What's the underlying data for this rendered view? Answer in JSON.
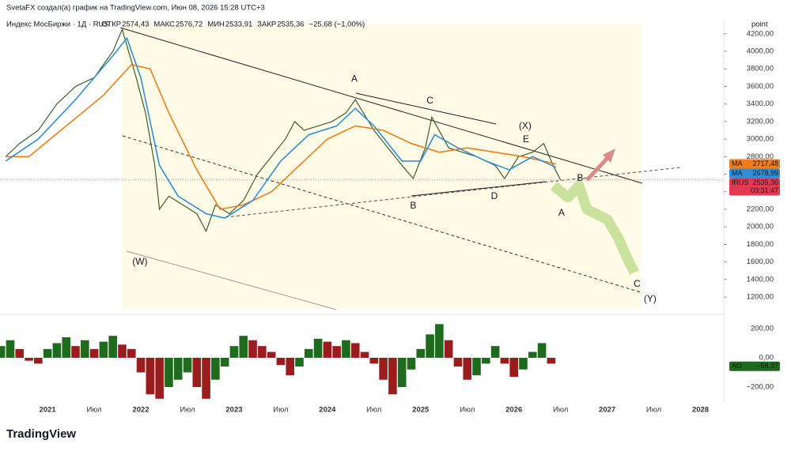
{
  "header": {
    "credit": "SvetaFX создал(а) график на TradingView.com, Июн 08, 2026 15:28 UTC+3",
    "symbol": "Индекс МосБиржи · 1Д · RUS",
    "stats": [
      {
        "label": "ОТКР",
        "value": "2574,43"
      },
      {
        "label": "МАКС",
        "value": "2576,72"
      },
      {
        "label": "МИН",
        "value": "2533,91"
      },
      {
        "label": "ЗАКР",
        "value": "2535,36"
      }
    ],
    "change": "−25,68 (−1,00%)",
    "unit": "point"
  },
  "brand": "TradingView",
  "chart_data": [
    {
      "type": "line",
      "xlim": [
        2020.49,
        2028.25
      ],
      "ylim": [
        1030,
        4360
      ],
      "yticks": [
        {
          "value": 1200,
          "label": "1200,00"
        },
        {
          "value": 1400,
          "label": "1400,00"
        },
        {
          "value": 1600,
          "label": "1600,00"
        },
        {
          "value": 1800,
          "label": "1800,00"
        },
        {
          "value": 2000,
          "label": "2000,00"
        },
        {
          "value": 2200,
          "label": "2200,00"
        },
        {
          "value": 2400,
          "label": "2400,00"
        },
        {
          "value": 2600,
          "label": "2600,00"
        },
        {
          "value": 2800,
          "label": "2800,00"
        },
        {
          "value": 3000,
          "label": "3000,00"
        },
        {
          "value": 3200,
          "label": "3200,00"
        },
        {
          "value": 3400,
          "label": "3400,00"
        },
        {
          "value": 3600,
          "label": "3600,00"
        },
        {
          "value": 3800,
          "label": "3800,00"
        },
        {
          "value": 4000,
          "label": "4000,00"
        },
        {
          "value": 4200,
          "label": "4200,00"
        }
      ],
      "series": [
        {
          "name": "IRUS",
          "color": "#3d5f2e",
          "x": [
            2020.55,
            2020.7,
            2020.9,
            2021.1,
            2021.3,
            2021.5,
            2021.7,
            2021.8,
            2021.95,
            2022.05,
            2022.15,
            2022.2,
            2022.3,
            2022.45,
            2022.6,
            2022.7,
            2022.8,
            2022.95,
            2023.1,
            2023.25,
            2023.4,
            2023.55,
            2023.65,
            2023.75,
            2023.9,
            2024.05,
            2024.2,
            2024.3,
            2024.5,
            2024.65,
            2024.8,
            2024.92,
            2025.05,
            2025.12,
            2025.3,
            2025.45,
            2025.6,
            2025.8,
            2025.9,
            2026.05,
            2026.2,
            2026.32,
            2026.42,
            2026.5
          ],
          "values": [
            2800,
            2950,
            3100,
            3400,
            3600,
            3700,
            4000,
            4250,
            3700,
            3300,
            2700,
            2200,
            2350,
            2250,
            2150,
            1950,
            2250,
            2150,
            2300,
            2600,
            2800,
            3000,
            3200,
            3100,
            3150,
            3200,
            3300,
            3450,
            3100,
            2900,
            2700,
            2550,
            2900,
            3250,
            2900,
            2850,
            2800,
            2700,
            2550,
            2800,
            2850,
            2950,
            2700,
            2535
          ],
          "last_value": 2535.36,
          "last_value_label": "2535,36",
          "countdown": "03:31:47",
          "tag_color": "#e53950"
        },
        {
          "name": "MA",
          "color": "#f07d1a",
          "x": [
            2020.55,
            2020.8,
            2021.2,
            2021.6,
            2021.9,
            2022.1,
            2022.3,
            2022.6,
            2022.85,
            2023.1,
            2023.4,
            2023.7,
            2024.0,
            2024.3,
            2024.6,
            2024.9,
            2025.2,
            2025.5,
            2025.8,
            2026.1,
            2026.45
          ],
          "values": [
            2800,
            2800,
            3150,
            3500,
            3850,
            3800,
            3300,
            2650,
            2200,
            2250,
            2400,
            2700,
            3000,
            3150,
            3100,
            2950,
            2850,
            2900,
            2850,
            2800,
            2717
          ],
          "last_value": 2717.48,
          "last_value_label": "2717,48",
          "tag_color": "#f07d1a"
        },
        {
          "name": "MA",
          "color": "#2f8fd6",
          "x": [
            2020.55,
            2020.9,
            2021.3,
            2021.7,
            2021.85,
            2022.0,
            2022.2,
            2022.4,
            2022.7,
            2022.9,
            2023.2,
            2023.5,
            2023.8,
            2024.1,
            2024.3,
            2024.5,
            2024.8,
            2025.0,
            2025.15,
            2025.4,
            2025.7,
            2025.95,
            2026.2,
            2026.45
          ],
          "values": [
            2750,
            3000,
            3450,
            3950,
            4150,
            3700,
            2700,
            2350,
            2150,
            2100,
            2300,
            2750,
            3050,
            3150,
            3350,
            3150,
            2750,
            2750,
            3050,
            2900,
            2750,
            2650,
            2800,
            2679
          ],
          "last_value": 2678.99,
          "last_value_label": "2678,99",
          "tag_color": "#2f8fd6"
        }
      ],
      "annotations": [
        {
          "text": "A",
          "x": 2024.29,
          "y": 3680,
          "color": "#1f3a8a"
        },
        {
          "text": "B",
          "x": 2024.92,
          "y": 2236,
          "color": "#1f3a8a"
        },
        {
          "text": "C",
          "x": 2025.1,
          "y": 3433,
          "color": "#1f3a8a"
        },
        {
          "text": "D",
          "x": 2025.79,
          "y": 2344,
          "color": "#1f3a8a"
        },
        {
          "text": "E",
          "x": 2026.13,
          "y": 2992,
          "color": "#1f3a8a"
        },
        {
          "text": "(W)",
          "x": 2021.99,
          "y": 1597,
          "color": "#1f6b2a"
        },
        {
          "text": "(X)",
          "x": 2026.12,
          "y": 3145,
          "color": "#1f6b2a"
        },
        {
          "text": "(Y)",
          "x": 2027.46,
          "y": 1174,
          "color": "#1f6b2a"
        },
        {
          "text": "A",
          "x": 2026.51,
          "y": 2155,
          "color": "#8b1a1a"
        },
        {
          "text": "B",
          "x": 2026.71,
          "y": 2551,
          "color": "#8b1a1a"
        },
        {
          "text": "C",
          "x": 2027.32,
          "y": 1345,
          "color": "#8b1a1a"
        }
      ]
    },
    {
      "type": "bar",
      "name": "AO",
      "up_color": "#1e6b1e",
      "down_color": "#9b1c1c",
      "xlim": [
        2020.49,
        2028.25
      ],
      "ylim": [
        -308,
        286
      ],
      "yticks": [
        {
          "value": -200,
          "label": "−200,00"
        },
        {
          "value": 0,
          "label": "0,00"
        },
        {
          "value": 200,
          "label": "200,00"
        }
      ],
      "xticks": [
        2021,
        {
          "value": 2021.5,
          "label": "Июл"
        },
        2022,
        {
          "value": 2022.5,
          "label": "Июл"
        },
        2023,
        {
          "value": 2023.5,
          "label": "Июл"
        },
        2024,
        {
          "value": 2024.5,
          "label": "Июл"
        },
        2025,
        {
          "value": 2025.5,
          "label": "Июл"
        },
        2026,
        {
          "value": 2026.5,
          "label": "Июл"
        },
        2027,
        {
          "value": 2027.5,
          "label": "Июл"
        },
        2028
      ],
      "x": [
        2020.5,
        2020.6,
        2020.7,
        2020.8,
        2020.9,
        2021.0,
        2021.1,
        2021.2,
        2021.3,
        2021.4,
        2021.5,
        2021.6,
        2021.7,
        2021.8,
        2021.9,
        2022.0,
        2022.1,
        2022.2,
        2022.3,
        2022.4,
        2022.5,
        2022.6,
        2022.7,
        2022.8,
        2022.9,
        2023.0,
        2023.1,
        2023.2,
        2023.3,
        2023.4,
        2023.5,
        2023.6,
        2023.7,
        2023.8,
        2023.9,
        2024.0,
        2024.1,
        2024.2,
        2024.3,
        2024.4,
        2024.5,
        2024.6,
        2024.7,
        2024.8,
        2024.9,
        2025.0,
        2025.1,
        2025.2,
        2025.3,
        2025.4,
        2025.5,
        2025.6,
        2025.7,
        2025.8,
        2025.9,
        2026.0,
        2026.1,
        2026.2,
        2026.3,
        2026.4
      ],
      "values": [
        80,
        120,
        60,
        -20,
        -40,
        60,
        100,
        140,
        80,
        120,
        60,
        110,
        150,
        90,
        60,
        -100,
        -250,
        -280,
        -200,
        -150,
        -100,
        -200,
        -280,
        -150,
        -60,
        80,
        150,
        120,
        80,
        40,
        -50,
        -120,
        -60,
        60,
        130,
        110,
        80,
        120,
        100,
        40,
        -40,
        -150,
        -250,
        -200,
        -80,
        60,
        160,
        230,
        120,
        -60,
        -150,
        -120,
        -40,
        80,
        -40,
        -130,
        -80,
        40,
        100,
        -40
      ],
      "last_value": -58.37,
      "last_value_label": "−58,37",
      "tag_color": "#1e6b1e"
    }
  ]
}
